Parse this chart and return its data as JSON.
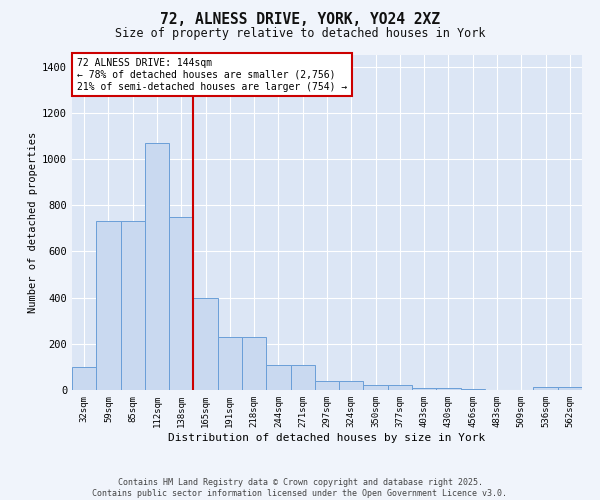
{
  "title_line1": "72, ALNESS DRIVE, YORK, YO24 2XZ",
  "title_line2": "Size of property relative to detached houses in York",
  "xlabel": "Distribution of detached houses by size in York",
  "ylabel": "Number of detached properties",
  "categories": [
    "32sqm",
    "59sqm",
    "85sqm",
    "112sqm",
    "138sqm",
    "165sqm",
    "191sqm",
    "218sqm",
    "244sqm",
    "271sqm",
    "297sqm",
    "324sqm",
    "350sqm",
    "377sqm",
    "403sqm",
    "430sqm",
    "456sqm",
    "483sqm",
    "509sqm",
    "536sqm",
    "562sqm"
  ],
  "values": [
    100,
    730,
    730,
    1070,
    750,
    400,
    230,
    230,
    110,
    110,
    40,
    40,
    20,
    20,
    10,
    10,
    5,
    0,
    0,
    15,
    15
  ],
  "bar_color": "#c9d9f0",
  "bar_edge_color": "#6a9fd8",
  "bar_edge_width": 0.7,
  "vline_x": 4.5,
  "vline_color": "#cc0000",
  "annotation_box_color": "#cc0000",
  "annotation_title": "72 ALNESS DRIVE: 144sqm",
  "annotation_line1": "← 78% of detached houses are smaller (2,756)",
  "annotation_line2": "21% of semi-detached houses are larger (754) →",
  "ylim": [
    0,
    1450
  ],
  "yticks": [
    0,
    200,
    400,
    600,
    800,
    1000,
    1200,
    1400
  ],
  "bg_color": "#dce6f5",
  "fig_bg_color": "#f0f4fb",
  "grid_color": "#ffffff",
  "footer_line1": "Contains HM Land Registry data © Crown copyright and database right 2025.",
  "footer_line2": "Contains public sector information licensed under the Open Government Licence v3.0."
}
